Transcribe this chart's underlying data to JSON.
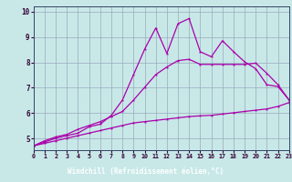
{
  "bg_color": "#c8e8e8",
  "plot_bg": "#c8e8e8",
  "label_bg": "#6655aa",
  "grid_color": "#99aabb",
  "line_color": "#aa00aa",
  "xlabel": "Windchill (Refroidissement éolien,°C)",
  "x_data": [
    0,
    1,
    2,
    3,
    4,
    5,
    6,
    7,
    8,
    9,
    10,
    11,
    12,
    13,
    14,
    15,
    16,
    17,
    18,
    19,
    20,
    21,
    22,
    23
  ],
  "y_jagged": [
    4.72,
    4.87,
    5.02,
    5.12,
    5.22,
    5.47,
    5.57,
    5.92,
    6.52,
    7.52,
    8.52,
    9.35,
    8.35,
    9.52,
    9.72,
    8.42,
    8.22,
    8.85,
    8.42,
    8.02,
    7.75,
    7.12,
    7.05,
    6.52
  ],
  "y_upper": [
    4.72,
    4.92,
    5.07,
    5.17,
    5.37,
    5.52,
    5.67,
    5.87,
    6.07,
    6.52,
    7.02,
    7.52,
    7.82,
    8.07,
    8.12,
    7.92,
    7.92,
    7.92,
    7.92,
    7.92,
    7.97,
    7.57,
    7.12,
    6.52
  ],
  "y_lower": [
    4.72,
    4.82,
    4.92,
    5.02,
    5.12,
    5.22,
    5.32,
    5.42,
    5.52,
    5.62,
    5.67,
    5.72,
    5.77,
    5.82,
    5.87,
    5.9,
    5.92,
    5.97,
    6.02,
    6.07,
    6.12,
    6.17,
    6.27,
    6.42
  ],
  "ylim": [
    4.55,
    10.2
  ],
  "xlim": [
    0,
    23
  ],
  "yticks": [
    5,
    6,
    7,
    8,
    9,
    10
  ],
  "xticks": [
    0,
    1,
    2,
    3,
    4,
    5,
    6,
    7,
    8,
    9,
    10,
    11,
    12,
    13,
    14,
    15,
    16,
    17,
    18,
    19,
    20,
    21,
    22,
    23
  ],
  "tick_color": "#330033",
  "xlabel_color": "#ffffff"
}
